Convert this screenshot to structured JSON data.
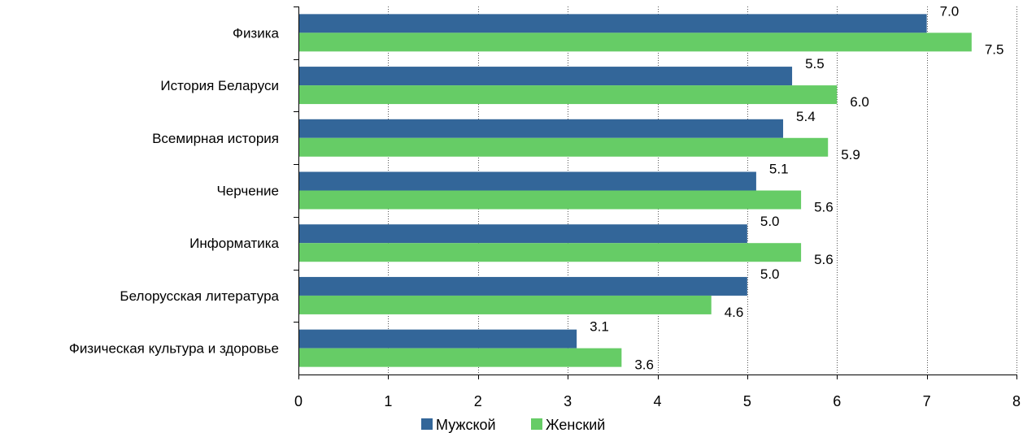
{
  "chart_data": {
    "type": "bar",
    "orientation": "horizontal",
    "title": "",
    "xlabel": "",
    "ylabel": "",
    "categories": [
      "Физика",
      "История Беларуси",
      "Всемирная история",
      "Черчение",
      "Информатика",
      "Белорусская литература",
      "Физическая культура и здоровье"
    ],
    "series": [
      {
        "name": "Мужской",
        "color": "#336699",
        "values": [
          7.0,
          5.5,
          5.4,
          5.1,
          5.0,
          5.0,
          3.1
        ]
      },
      {
        "name": "Женский",
        "color": "#66CC66",
        "values": [
          7.5,
          6.0,
          5.9,
          5.6,
          5.6,
          4.6,
          3.6
        ]
      }
    ],
    "data_labels": [
      [
        "7.0",
        "5.5",
        "5.4",
        "5.1",
        "5.0",
        "5.0",
        "3.1"
      ],
      [
        "7.5",
        "6.0",
        "5.9",
        "5.6",
        "5.6",
        "4.6",
        "3.6"
      ]
    ],
    "xlim": [
      0,
      8
    ],
    "xticks": [
      "0",
      "1",
      "2",
      "3",
      "4",
      "5",
      "6",
      "7",
      "8"
    ],
    "grid": "vertical dotted",
    "legend_position": "bottom"
  }
}
